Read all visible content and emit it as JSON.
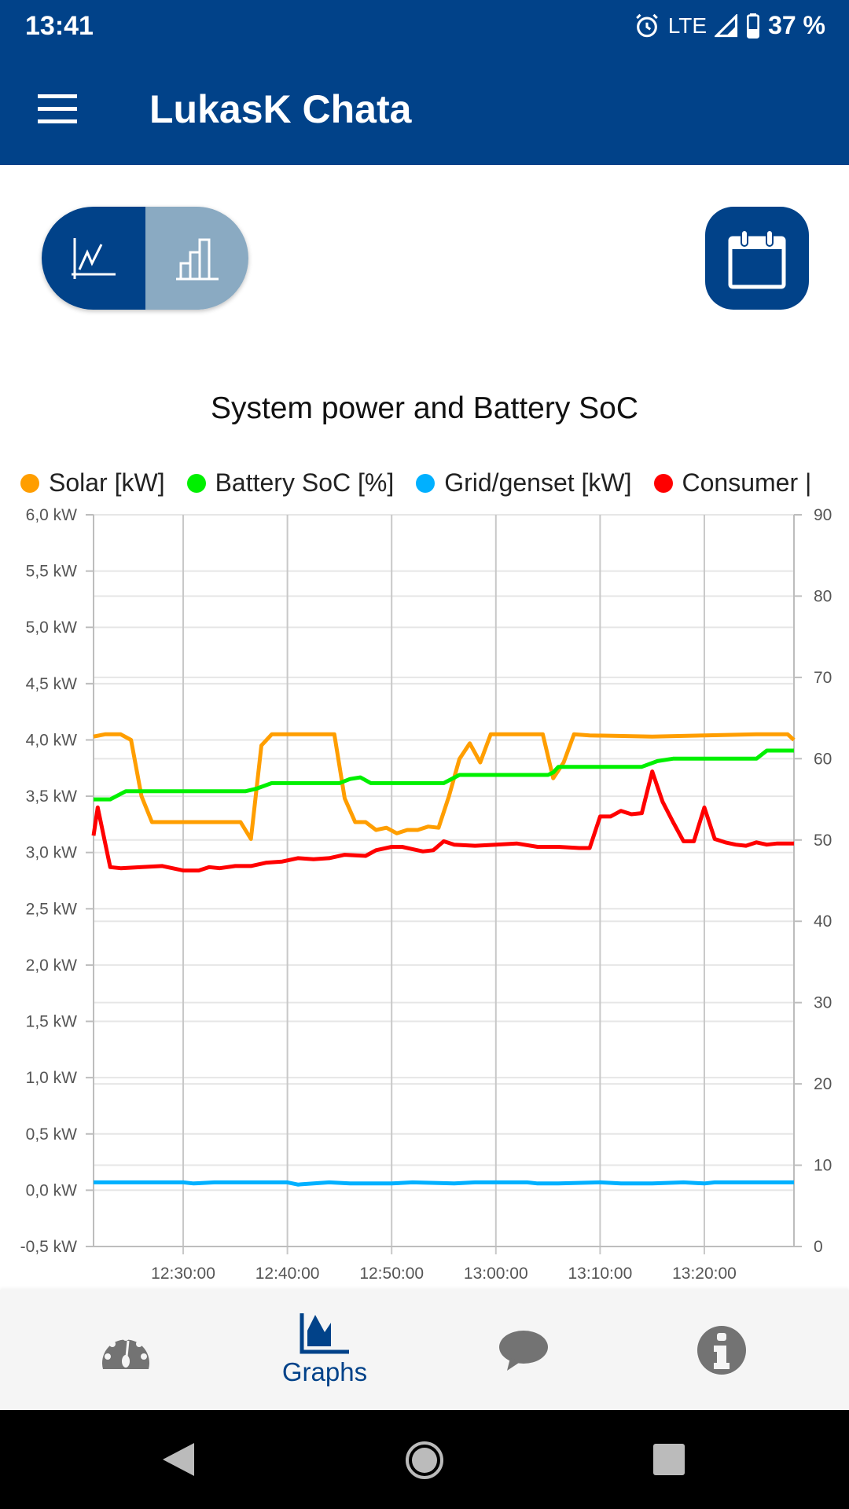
{
  "status_bar": {
    "time": "13:41",
    "network": "LTE",
    "battery": "37 %"
  },
  "app_bar": {
    "title": "LukasK Chata"
  },
  "colors": {
    "primary": "#014289",
    "toggle_inactive": "#8aaac2",
    "solar": "#ff9e00",
    "soc": "#00f000",
    "grid": "#00b0ff",
    "consumer": "#ff0000"
  },
  "chart_data": {
    "type": "line",
    "title": "System power and Battery SoC",
    "legend": [
      "Solar [kW]",
      "Battery SoC [%]",
      "Grid/genset [kW]",
      "Consumer |"
    ],
    "legend_position": "top",
    "x_unit": "minutes after 12:00",
    "xlim": [
      21.4,
      88.6
    ],
    "x_ticks": [
      30,
      40,
      50,
      60,
      70,
      80
    ],
    "x_tick_labels": [
      "12:30:00",
      "12:40:00",
      "12:50:00",
      "13:00:00",
      "13:10:00",
      "13:20:00"
    ],
    "y_left": {
      "lim": [
        -0.5,
        6.0
      ],
      "tick_labels": [
        "-0,5 kW",
        "0,0 kW",
        "0,5 kW",
        "1,0 kW",
        "1,5 kW",
        "2,0 kW",
        "2,5 kW",
        "3,0 kW",
        "3,5 kW",
        "4,0 kW",
        "4,5 kW",
        "5,0 kW",
        "5,5 kW",
        "6,0 kW"
      ]
    },
    "y_right": {
      "lim": [
        0,
        90
      ],
      "tick_labels": [
        "0",
        "10",
        "20",
        "30",
        "40",
        "50",
        "60",
        "70",
        "80",
        "90"
      ]
    },
    "grid": true,
    "series": [
      {
        "name": "Solar [kW]",
        "axis": "left",
        "color": "#ff9e00",
        "x": [
          21.4,
          22.5,
          24,
          25,
          26,
          27,
          35.5,
          36.5,
          37.5,
          38.5,
          44.5,
          45.5,
          46.5,
          47.5,
          48.5,
          49.5,
          50.5,
          51.5,
          52.5,
          53.5,
          54.5,
          55.5,
          56.5,
          57.5,
          58.5,
          59.5,
          64.5,
          65.5,
          66.5,
          67.5,
          69,
          75,
          80,
          85,
          88,
          88.6
        ],
        "y": [
          4.03,
          4.05,
          4.05,
          4.0,
          3.5,
          3.27,
          3.27,
          3.12,
          3.95,
          4.05,
          4.05,
          3.48,
          3.27,
          3.27,
          3.2,
          3.22,
          3.17,
          3.2,
          3.2,
          3.23,
          3.22,
          3.5,
          3.83,
          3.97,
          3.8,
          4.05,
          4.05,
          3.66,
          3.8,
          4.05,
          4.04,
          4.03,
          4.04,
          4.05,
          4.05,
          4.0
        ]
      },
      {
        "name": "Battery SoC [%]",
        "axis": "right",
        "color": "#00f000",
        "x": [
          21.4,
          23,
          24.5,
          36,
          37,
          38.5,
          45,
          46,
          47,
          48,
          55,
          56.5,
          65,
          65.5,
          66,
          74,
          75.5,
          77,
          85,
          86,
          88.6
        ],
        "y": [
          55,
          55,
          56,
          56,
          56.3,
          57,
          57,
          57.5,
          57.7,
          57,
          57,
          58,
          58,
          58.3,
          59,
          59,
          59.7,
          60,
          60,
          61,
          61
        ]
      },
      {
        "name": "Grid/genset [kW]",
        "axis": "left",
        "color": "#00b0ff",
        "x": [
          21.4,
          30,
          31,
          33,
          40,
          41,
          44,
          46,
          50,
          52,
          56,
          58,
          63,
          64,
          66,
          70,
          72,
          75,
          78,
          80,
          81,
          88.6
        ],
        "y": [
          0.07,
          0.07,
          0.06,
          0.07,
          0.07,
          0.05,
          0.07,
          0.06,
          0.06,
          0.07,
          0.06,
          0.07,
          0.07,
          0.06,
          0.06,
          0.07,
          0.06,
          0.06,
          0.07,
          0.06,
          0.07,
          0.07
        ]
      },
      {
        "name": "Consumer [kW]",
        "axis": "left",
        "color": "#ff0000",
        "x": [
          21.4,
          21.8,
          23,
          24,
          26,
          28,
          30,
          31.5,
          32.5,
          33.5,
          35,
          36.5,
          38,
          39.5,
          41,
          42.5,
          44,
          45.5,
          47.5,
          48.5,
          50,
          51,
          52,
          53,
          54,
          55,
          56,
          58,
          60,
          62,
          64,
          66,
          68,
          69,
          70,
          71,
          72,
          73,
          74,
          75,
          76,
          77,
          78,
          79,
          80,
          81,
          82,
          83,
          84,
          85,
          86,
          87,
          88.6
        ],
        "y": [
          3.15,
          3.4,
          2.87,
          2.86,
          2.87,
          2.88,
          2.84,
          2.84,
          2.87,
          2.86,
          2.88,
          2.88,
          2.91,
          2.92,
          2.95,
          2.94,
          2.95,
          2.98,
          2.97,
          3.02,
          3.05,
          3.05,
          3.03,
          3.01,
          3.02,
          3.1,
          3.07,
          3.06,
          3.07,
          3.08,
          3.05,
          3.05,
          3.04,
          3.04,
          3.32,
          3.32,
          3.37,
          3.34,
          3.35,
          3.72,
          3.45,
          3.27,
          3.1,
          3.1,
          3.4,
          3.12,
          3.09,
          3.07,
          3.06,
          3.09,
          3.07,
          3.08,
          3.08
        ]
      }
    ]
  },
  "bottom_nav": {
    "items": [
      {
        "icon": "dashboard-icon"
      },
      {
        "icon": "graphs-icon",
        "label": "Graphs"
      },
      {
        "icon": "chat-icon"
      },
      {
        "icon": "info-icon"
      }
    ]
  }
}
